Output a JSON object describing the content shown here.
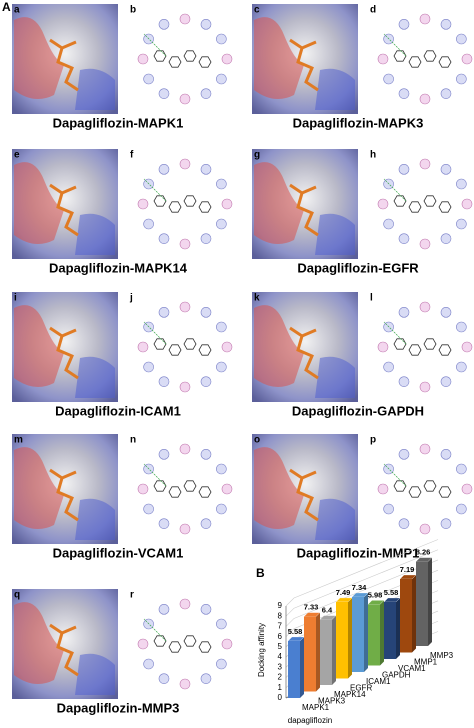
{
  "figure_label": "A",
  "panels": [
    {
      "image_label": "a",
      "diagram_label": "b",
      "title": "Dapagliflozin-MAPK1"
    },
    {
      "image_label": "c",
      "diagram_label": "d",
      "title": "Dapagliflozin-MAPK3"
    },
    {
      "image_label": "e",
      "diagram_label": "f",
      "title": "Dapagliflozin-MAPK14"
    },
    {
      "image_label": "g",
      "diagram_label": "h",
      "title": "Dapagliflozin-EGFR"
    },
    {
      "image_label": "i",
      "diagram_label": "j",
      "title": "Dapagliflozin-ICAM1"
    },
    {
      "image_label": "k",
      "diagram_label": "l",
      "title": "Dapagliflozin-GAPDH"
    },
    {
      "image_label": "m",
      "diagram_label": "n",
      "title": "Dapagliflozin-VCAM1"
    },
    {
      "image_label": "o",
      "diagram_label": "p",
      "title": "Dapagliflozin-MMP1"
    },
    {
      "image_label": "q",
      "diagram_label": "r",
      "title": "Dapagliflozin-MMP3"
    }
  ],
  "chart_label": "B",
  "chart_data": {
    "type": "bar",
    "x_label": "dapagliflozin",
    "y_label": "Docking affinity",
    "categories": [
      "MAPK1",
      "MAPK3",
      "MAPK14",
      "EGFR",
      "ICAM1",
      "GAPDH",
      "VCAM1",
      "MMP1",
      "MMP3"
    ],
    "values": [
      5.58,
      7.33,
      6.4,
      7.49,
      7.34,
      5.98,
      5.58,
      7.19,
      8.26
    ],
    "colors": [
      "#4a7fd0",
      "#ee7d31",
      "#a5a5a5",
      "#ffc000",
      "#5b9bd5",
      "#70ad47",
      "#264478",
      "#9e480e",
      "#636363"
    ],
    "ylim": [
      0,
      9
    ],
    "yticks": [
      0,
      1,
      2,
      3,
      4,
      5,
      6,
      7,
      8,
      9
    ],
    "grid": true
  }
}
